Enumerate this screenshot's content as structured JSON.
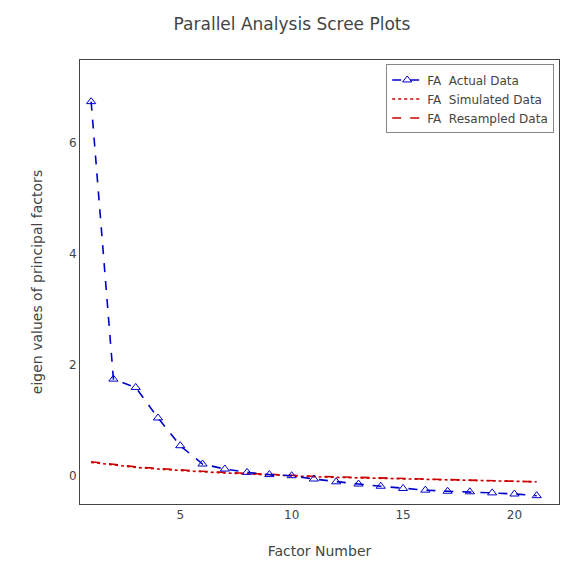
{
  "chart_data": {
    "type": "line",
    "title": "Parallel Analysis Scree Plots",
    "x_label": "Factor Number",
    "y_label": "eigen values of principal factors",
    "x": [
      1,
      2,
      3,
      4,
      5,
      6,
      7,
      8,
      9,
      10,
      11,
      12,
      13,
      14,
      15,
      16,
      17,
      18,
      19,
      20,
      21
    ],
    "series": [
      {
        "name": "FA  Actual Data",
        "color": "#0000cc",
        "line_style": "dashed",
        "marker": "triangle-open",
        "values": [
          6.75,
          1.75,
          1.6,
          1.05,
          0.55,
          0.22,
          0.13,
          0.07,
          0.03,
          0.01,
          -0.05,
          -0.1,
          -0.14,
          -0.18,
          -0.22,
          -0.25,
          -0.27,
          -0.28,
          -0.3,
          -0.32,
          -0.35
        ]
      },
      {
        "name": "FA  Simulated Data",
        "color": "#cc0000",
        "line_style": "dotted",
        "values": [
          0.25,
          0.2,
          0.16,
          0.13,
          0.1,
          0.08,
          0.06,
          0.04,
          0.02,
          0.0,
          -0.01,
          -0.02,
          -0.03,
          -0.04,
          -0.05,
          -0.06,
          -0.07,
          -0.07,
          -0.08,
          -0.09,
          -0.1
        ]
      },
      {
        "name": "FA  Resampled Data",
        "color": "#cc0000",
        "line_style": "dashed",
        "values": [
          0.26,
          0.21,
          0.17,
          0.14,
          0.11,
          0.09,
          0.07,
          0.05,
          0.03,
          0.01,
          0.0,
          -0.01,
          -0.02,
          -0.03,
          -0.04,
          -0.05,
          -0.06,
          -0.07,
          -0.08,
          -0.09,
          -0.1
        ]
      }
    ],
    "xlim": [
      0.5,
      22.0
    ],
    "ylim": [
      -0.5,
      7.5
    ],
    "xticks": [
      5,
      10,
      15,
      20
    ],
    "yticks": [
      0,
      2,
      4,
      6
    ],
    "grid": false,
    "legend": "upper right"
  }
}
